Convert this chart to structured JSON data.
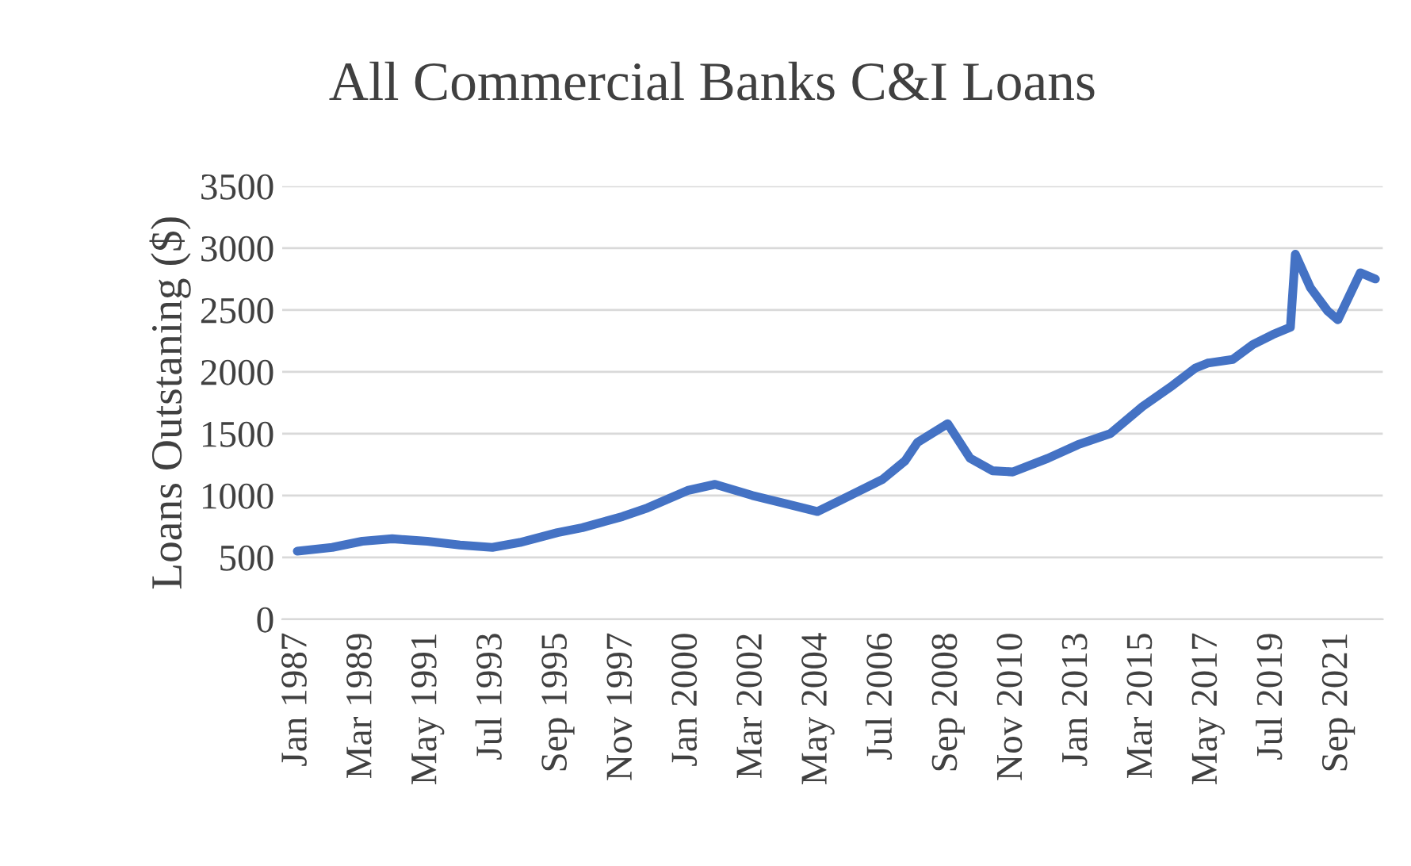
{
  "chart_data": {
    "type": "line",
    "title": "All Commercial Banks C&I Loans",
    "ylabel": "Loans Outstaning ($)",
    "x": [
      "1987-01",
      "1988-03",
      "1989-03",
      "1990-03",
      "1991-05",
      "1992-06",
      "1993-07",
      "1994-06",
      "1995-09",
      "1996-07",
      "1997-11",
      "1998-09",
      "2000-01",
      "2000-12",
      "2002-03",
      "2003-03",
      "2004-05",
      "2005-02",
      "2006-07",
      "2007-04",
      "2007-09",
      "2008-09",
      "2009-06",
      "2010-03",
      "2010-11",
      "2012-01",
      "2013-01",
      "2014-02",
      "2015-03",
      "2016-03",
      "2016-12",
      "2017-05",
      "2018-03",
      "2018-11",
      "2019-07",
      "2020-02",
      "2020-04",
      "2020-10",
      "2021-05",
      "2021-09",
      "2022-06",
      "2022-12"
    ],
    "series": [
      {
        "color": "#4472c4",
        "values": [
          550,
          580,
          630,
          650,
          630,
          600,
          580,
          620,
          700,
          740,
          830,
          900,
          1040,
          1090,
          1000,
          940,
          870,
          960,
          1130,
          1280,
          1430,
          1580,
          1300,
          1200,
          1190,
          1300,
          1410,
          1500,
          1720,
          1890,
          2030,
          2070,
          2100,
          2220,
          2300,
          2360,
          2950,
          2680,
          2490,
          2420,
          2800,
          2750
        ]
      }
    ],
    "xlim": [
      "1986-07",
      "2023-03"
    ],
    "xticks": [
      {
        "value": "1987-01",
        "label": "Jan 1987"
      },
      {
        "value": "1989-03",
        "label": "Mar 1989"
      },
      {
        "value": "1991-05",
        "label": "May 1991"
      },
      {
        "value": "1993-07",
        "label": "Jul 1993"
      },
      {
        "value": "1995-09",
        "label": "Sep 1995"
      },
      {
        "value": "1997-11",
        "label": "Nov 1997"
      },
      {
        "value": "2000-01",
        "label": "Jan 2000"
      },
      {
        "value": "2002-03",
        "label": "Mar 2002"
      },
      {
        "value": "2004-05",
        "label": "May 2004"
      },
      {
        "value": "2006-07",
        "label": "Jul 2006"
      },
      {
        "value": "2008-09",
        "label": "Sep 2008"
      },
      {
        "value": "2010-11",
        "label": "Nov 2010"
      },
      {
        "value": "2013-01",
        "label": "Jan 2013"
      },
      {
        "value": "2015-03",
        "label": "Mar 2015"
      },
      {
        "value": "2017-05",
        "label": "May 2017"
      },
      {
        "value": "2019-07",
        "label": "Jul 2019"
      },
      {
        "value": "2021-09",
        "label": "Sep 2021"
      }
    ],
    "ylim": [
      0,
      3500
    ],
    "yticks": [
      0,
      500,
      1000,
      1500,
      2000,
      2500,
      3000,
      3500
    ],
    "grid": "y",
    "line_style": "solid"
  }
}
